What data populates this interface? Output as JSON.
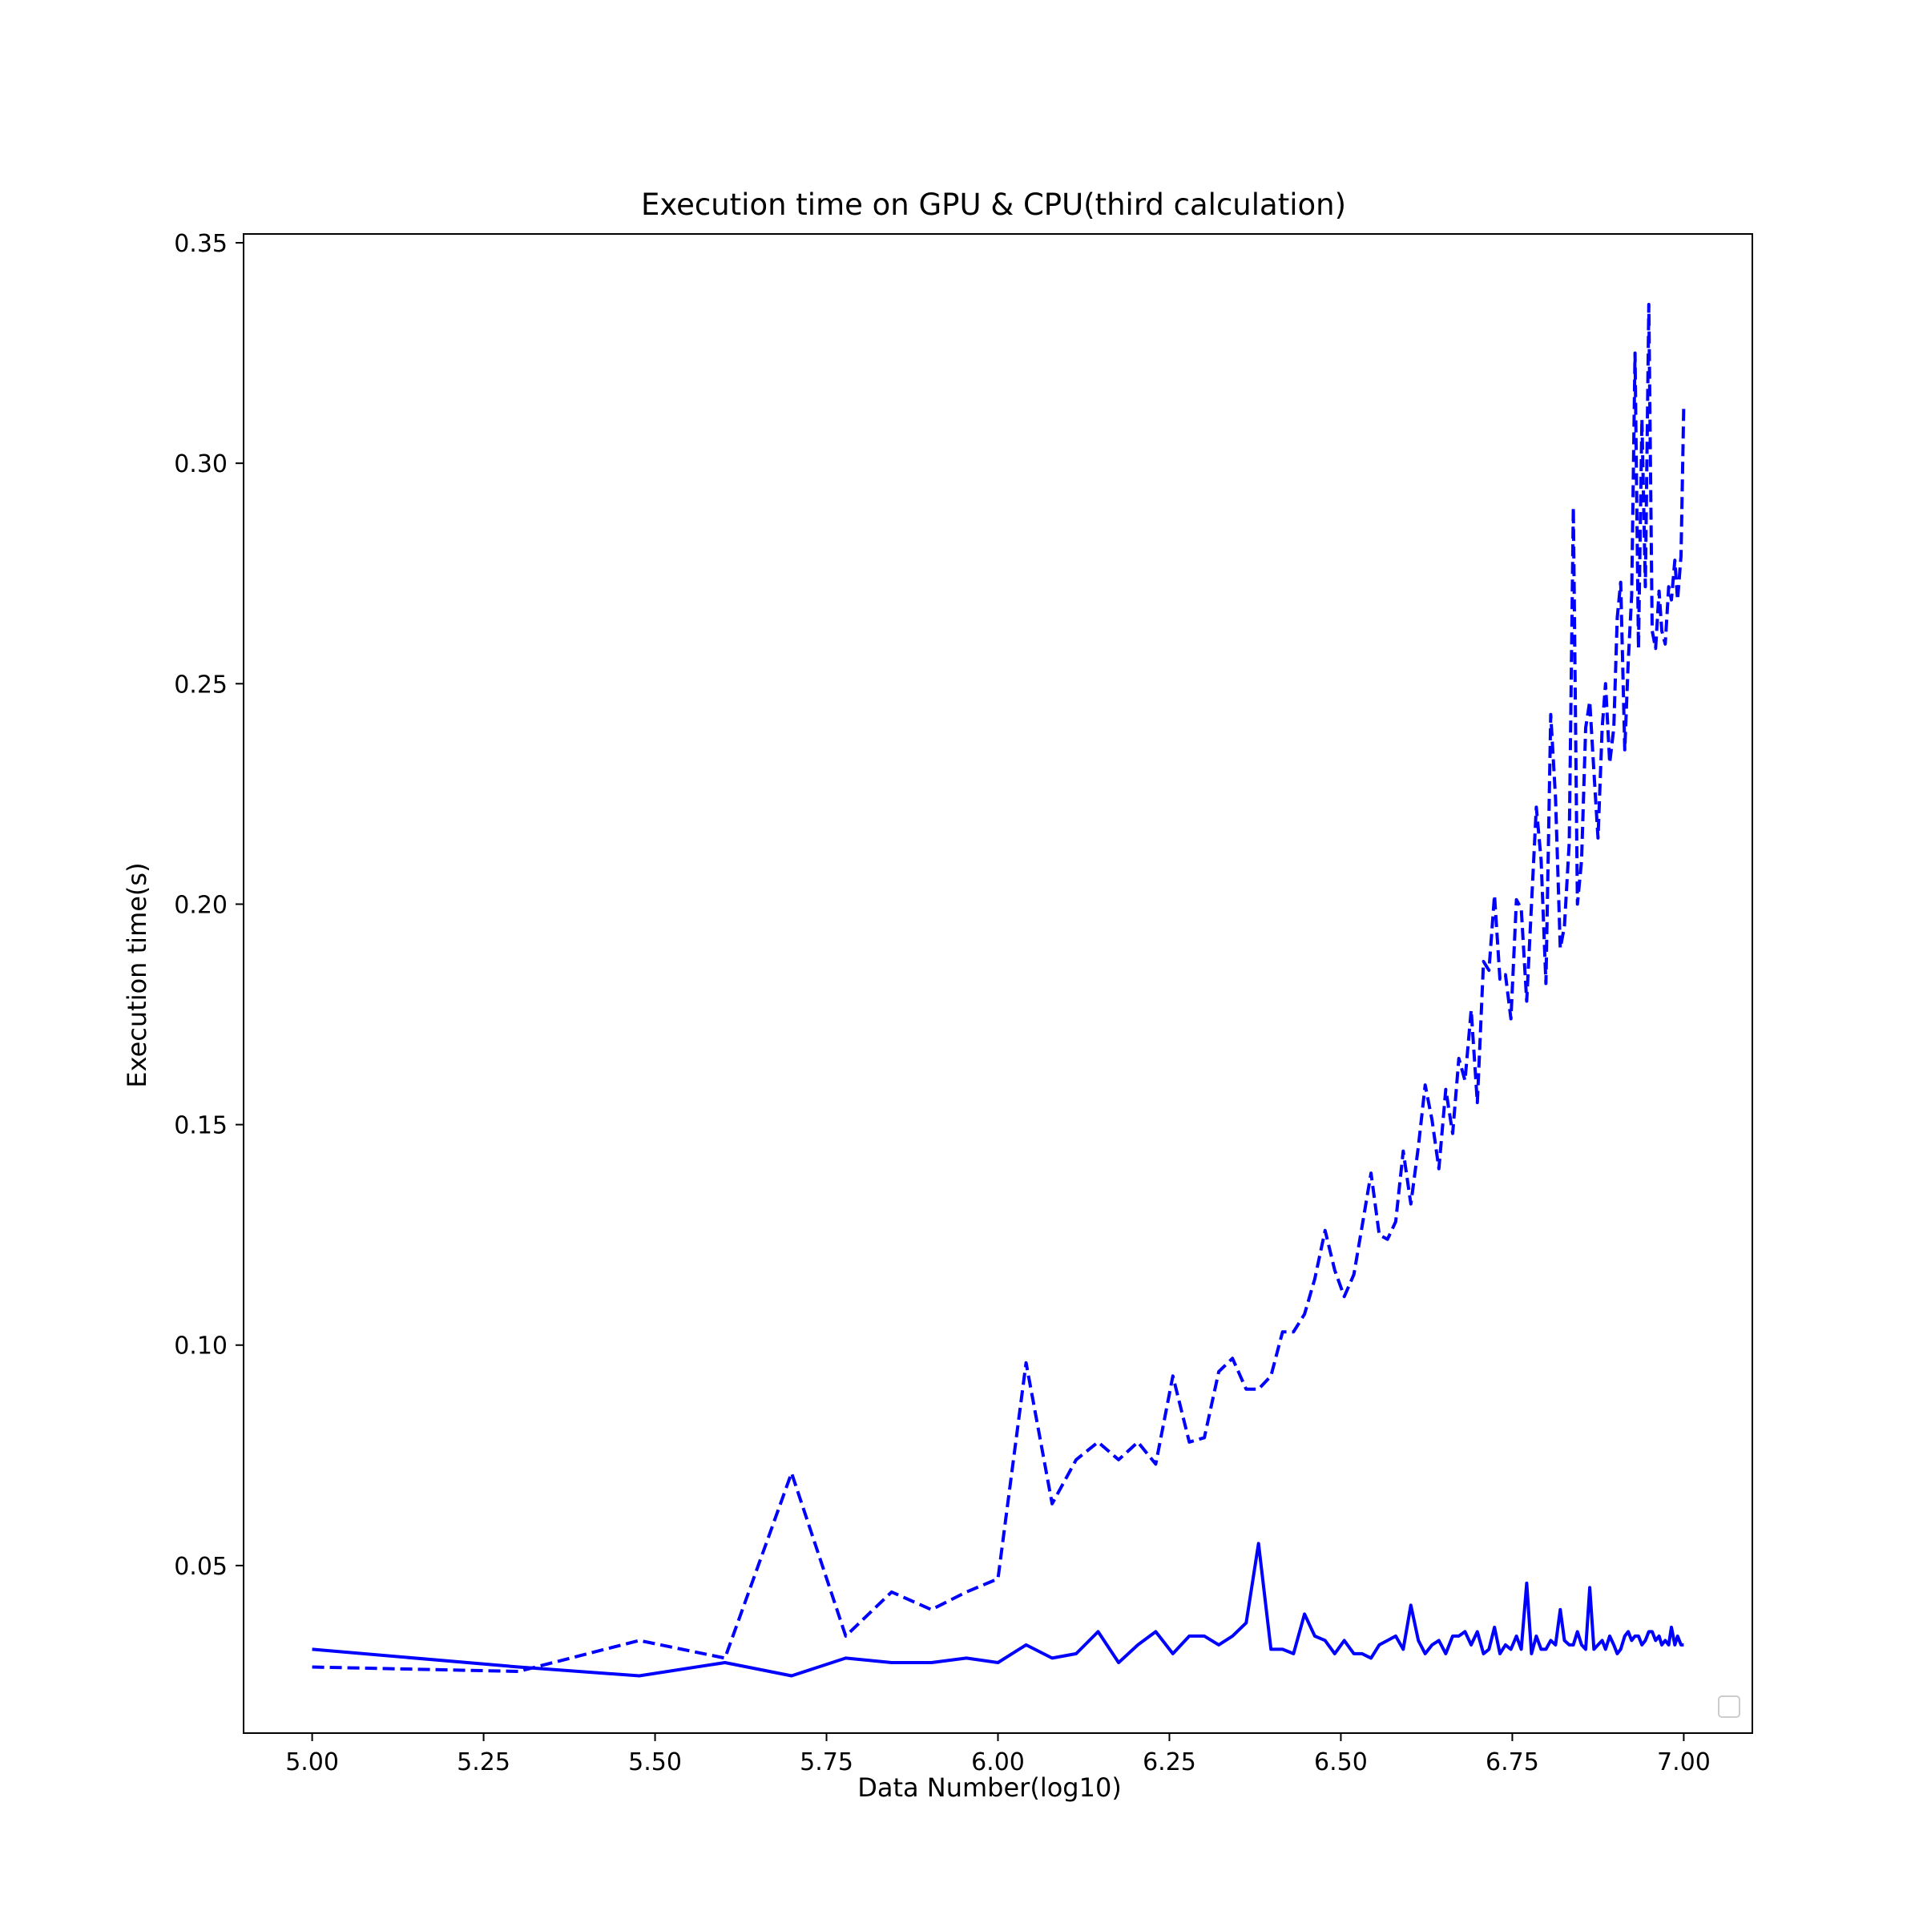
{
  "chart_data": {
    "type": "line",
    "title": "Execution time on GPU & CPU(third calculation)",
    "xlabel": "Data Number(log10)",
    "ylabel": "Execution time(s)",
    "xlim": [
      4.9,
      7.1
    ],
    "ylim": [
      0.012,
      0.352
    ],
    "xticks": [
      5.0,
      5.25,
      5.5,
      5.75,
      6.0,
      6.25,
      6.5,
      6.75,
      7.0
    ],
    "xtick_labels": [
      "5.00",
      "5.25",
      "5.50",
      "5.75",
      "6.00",
      "6.25",
      "6.50",
      "6.75",
      "7.00"
    ],
    "yticks": [
      0.05,
      0.1,
      0.15,
      0.2,
      0.25,
      0.3,
      0.35
    ],
    "ytick_labels": [
      "0.05",
      "0.10",
      "0.15",
      "0.20",
      "0.25",
      "0.30",
      "0.35"
    ],
    "grid": false,
    "legend": {
      "placement": "lower-right",
      "entries": []
    },
    "color": "#0000ff",
    "series": [
      {
        "style": "dashed",
        "points": [
          [
            5.0,
            0.027
          ],
          [
            5.301,
            0.026
          ],
          [
            5.477,
            0.033
          ],
          [
            5.602,
            0.029
          ],
          [
            5.699,
            0.071
          ],
          [
            5.778,
            0.034
          ],
          [
            5.845,
            0.044
          ],
          [
            5.903,
            0.04
          ],
          [
            5.954,
            0.044
          ],
          [
            6.0,
            0.047
          ],
          [
            6.041,
            0.096
          ],
          [
            6.079,
            0.064
          ],
          [
            6.114,
            0.074
          ],
          [
            6.146,
            0.078
          ],
          [
            6.176,
            0.074
          ],
          [
            6.204,
            0.078
          ],
          [
            6.23,
            0.073
          ],
          [
            6.255,
            0.093
          ],
          [
            6.279,
            0.078
          ],
          [
            6.301,
            0.079
          ],
          [
            6.322,
            0.094
          ],
          [
            6.342,
            0.097
          ],
          [
            6.362,
            0.09
          ],
          [
            6.38,
            0.09
          ],
          [
            6.398,
            0.093
          ],
          [
            6.415,
            0.103
          ],
          [
            6.431,
            0.103
          ],
          [
            6.447,
            0.107
          ],
          [
            6.462,
            0.115
          ],
          [
            6.477,
            0.126
          ],
          [
            6.491,
            0.117
          ],
          [
            6.505,
            0.111
          ],
          [
            6.519,
            0.116
          ],
          [
            6.531,
            0.127
          ],
          [
            6.544,
            0.139
          ],
          [
            6.556,
            0.125
          ],
          [
            6.568,
            0.124
          ],
          [
            6.58,
            0.128
          ],
          [
            6.591,
            0.144
          ],
          [
            6.602,
            0.132
          ],
          [
            6.613,
            0.145
          ],
          [
            6.623,
            0.159
          ],
          [
            6.633,
            0.151
          ],
          [
            6.643,
            0.14
          ],
          [
            6.653,
            0.158
          ],
          [
            6.663,
            0.148
          ],
          [
            6.672,
            0.165
          ],
          [
            6.681,
            0.16
          ],
          [
            6.69,
            0.176
          ],
          [
            6.699,
            0.155
          ],
          [
            6.708,
            0.187
          ],
          [
            6.716,
            0.185
          ],
          [
            6.724,
            0.202
          ],
          [
            6.732,
            0.183
          ],
          [
            6.74,
            0.184
          ],
          [
            6.748,
            0.174
          ],
          [
            6.756,
            0.201
          ],
          [
            6.763,
            0.199
          ],
          [
            6.771,
            0.178
          ],
          [
            6.778,
            0.2
          ],
          [
            6.785,
            0.222
          ],
          [
            6.792,
            0.21
          ],
          [
            6.799,
            0.182
          ],
          [
            6.806,
            0.243
          ],
          [
            6.813,
            0.224
          ],
          [
            6.82,
            0.19
          ],
          [
            6.826,
            0.195
          ],
          [
            6.833,
            0.214
          ],
          [
            6.839,
            0.29
          ],
          [
            6.845,
            0.2
          ],
          [
            6.851,
            0.21
          ],
          [
            6.857,
            0.24
          ],
          [
            6.863,
            0.246
          ],
          [
            6.869,
            0.23
          ],
          [
            6.875,
            0.215
          ],
          [
            6.881,
            0.24
          ],
          [
            6.886,
            0.25
          ],
          [
            6.892,
            0.232
          ],
          [
            6.898,
            0.24
          ],
          [
            6.903,
            0.265
          ],
          [
            6.908,
            0.273
          ],
          [
            6.914,
            0.235
          ],
          [
            6.919,
            0.255
          ],
          [
            6.924,
            0.27
          ],
          [
            6.929,
            0.325
          ],
          [
            6.934,
            0.258
          ],
          [
            6.939,
            0.31
          ],
          [
            6.944,
            0.272
          ],
          [
            6.949,
            0.336
          ],
          [
            6.954,
            0.262
          ],
          [
            6.959,
            0.258
          ],
          [
            6.964,
            0.271
          ],
          [
            6.968,
            0.262
          ],
          [
            6.973,
            0.259
          ],
          [
            6.978,
            0.272
          ],
          [
            6.982,
            0.269
          ],
          [
            6.987,
            0.278
          ],
          [
            6.991,
            0.269
          ],
          [
            6.996,
            0.279
          ],
          [
            7.0,
            0.313
          ]
        ]
      },
      {
        "style": "solid",
        "points": [
          [
            5.0,
            0.031
          ],
          [
            5.301,
            0.027
          ],
          [
            5.477,
            0.025
          ],
          [
            5.602,
            0.028
          ],
          [
            5.699,
            0.025
          ],
          [
            5.778,
            0.029
          ],
          [
            5.845,
            0.028
          ],
          [
            5.903,
            0.028
          ],
          [
            5.954,
            0.029
          ],
          [
            6.0,
            0.028
          ],
          [
            6.041,
            0.032
          ],
          [
            6.079,
            0.029
          ],
          [
            6.114,
            0.03
          ],
          [
            6.146,
            0.035
          ],
          [
            6.176,
            0.028
          ],
          [
            6.204,
            0.032
          ],
          [
            6.23,
            0.035
          ],
          [
            6.255,
            0.03
          ],
          [
            6.279,
            0.034
          ],
          [
            6.301,
            0.034
          ],
          [
            6.322,
            0.032
          ],
          [
            6.342,
            0.034
          ],
          [
            6.362,
            0.037
          ],
          [
            6.38,
            0.055
          ],
          [
            6.398,
            0.031
          ],
          [
            6.415,
            0.031
          ],
          [
            6.431,
            0.03
          ],
          [
            6.447,
            0.039
          ],
          [
            6.462,
            0.034
          ],
          [
            6.477,
            0.033
          ],
          [
            6.491,
            0.03
          ],
          [
            6.505,
            0.033
          ],
          [
            6.519,
            0.03
          ],
          [
            6.531,
            0.03
          ],
          [
            6.544,
            0.029
          ],
          [
            6.556,
            0.032
          ],
          [
            6.568,
            0.033
          ],
          [
            6.58,
            0.034
          ],
          [
            6.591,
            0.031
          ],
          [
            6.602,
            0.041
          ],
          [
            6.613,
            0.033
          ],
          [
            6.623,
            0.03
          ],
          [
            6.633,
            0.032
          ],
          [
            6.643,
            0.033
          ],
          [
            6.653,
            0.03
          ],
          [
            6.663,
            0.034
          ],
          [
            6.672,
            0.034
          ],
          [
            6.681,
            0.035
          ],
          [
            6.69,
            0.032
          ],
          [
            6.699,
            0.035
          ],
          [
            6.708,
            0.03
          ],
          [
            6.716,
            0.031
          ],
          [
            6.724,
            0.036
          ],
          [
            6.732,
            0.03
          ],
          [
            6.74,
            0.032
          ],
          [
            6.748,
            0.031
          ],
          [
            6.756,
            0.034
          ],
          [
            6.763,
            0.031
          ],
          [
            6.771,
            0.046
          ],
          [
            6.778,
            0.03
          ],
          [
            6.785,
            0.034
          ],
          [
            6.792,
            0.031
          ],
          [
            6.799,
            0.031
          ],
          [
            6.806,
            0.033
          ],
          [
            6.813,
            0.032
          ],
          [
            6.82,
            0.04
          ],
          [
            6.826,
            0.033
          ],
          [
            6.833,
            0.032
          ],
          [
            6.839,
            0.032
          ],
          [
            6.845,
            0.035
          ],
          [
            6.851,
            0.032
          ],
          [
            6.857,
            0.031
          ],
          [
            6.863,
            0.045
          ],
          [
            6.869,
            0.031
          ],
          [
            6.875,
            0.032
          ],
          [
            6.881,
            0.033
          ],
          [
            6.886,
            0.031
          ],
          [
            6.892,
            0.034
          ],
          [
            6.898,
            0.032
          ],
          [
            6.903,
            0.03
          ],
          [
            6.908,
            0.031
          ],
          [
            6.914,
            0.034
          ],
          [
            6.919,
            0.035
          ],
          [
            6.924,
            0.033
          ],
          [
            6.929,
            0.034
          ],
          [
            6.934,
            0.034
          ],
          [
            6.939,
            0.032
          ],
          [
            6.944,
            0.033
          ],
          [
            6.949,
            0.035
          ],
          [
            6.954,
            0.035
          ],
          [
            6.959,
            0.033
          ],
          [
            6.964,
            0.034
          ],
          [
            6.968,
            0.032
          ],
          [
            6.973,
            0.033
          ],
          [
            6.978,
            0.032
          ],
          [
            6.982,
            0.036
          ],
          [
            6.987,
            0.032
          ],
          [
            6.991,
            0.034
          ],
          [
            6.996,
            0.032
          ],
          [
            7.0,
            0.032
          ]
        ]
      }
    ]
  }
}
